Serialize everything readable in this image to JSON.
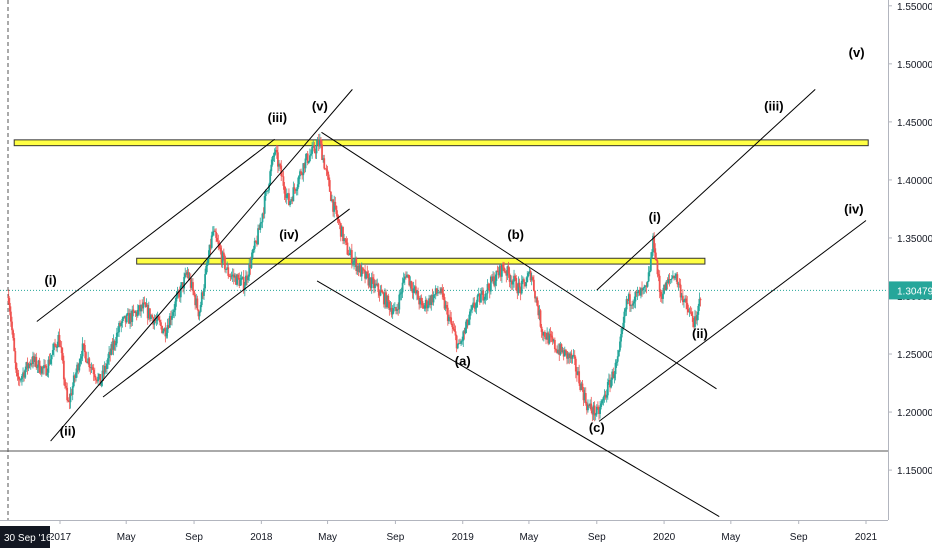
{
  "chart_data": {
    "type": "candlestick",
    "x_axis": {
      "cursor_label": "30 Sep '16",
      "ticks": [
        "2017",
        "May",
        "Sep",
        "2018",
        "May",
        "Sep",
        "2019",
        "May",
        "Sep",
        "2020",
        "May",
        "Sep",
        "2021"
      ]
    },
    "y_axis": {
      "ticks": [
        "1.15000",
        "1.20000",
        "1.25000",
        "1.30000",
        "1.35000",
        "1.40000",
        "1.45000",
        "1.50000",
        "1.55000"
      ],
      "tick_values": [
        1.15,
        1.2,
        1.25,
        1.3,
        1.35,
        1.4,
        1.45,
        1.5,
        1.55
      ],
      "range": [
        1.107,
        1.555
      ]
    },
    "last_price": {
      "label": "1.30479",
      "value": 1.3048,
      "color": "#26a69a"
    },
    "colors": {
      "up": "#26a69a",
      "down": "#ef5350",
      "resistance_fill": "#ffff44",
      "resistance_stroke": "#333333",
      "channel": "#000000"
    },
    "price_path": [
      [
        "2016-09-30",
        1.3
      ],
      [
        "2016-10-15",
        1.225
      ],
      [
        "2016-11-10",
        1.245
      ],
      [
        "2016-12-05",
        1.235
      ],
      [
        "2016-12-30",
        1.265
      ],
      [
        "2017-01-15",
        1.205
      ],
      [
        "2017-02-10",
        1.255
      ],
      [
        "2017-03-15",
        1.225
      ],
      [
        "2017-04-20",
        1.275
      ],
      [
        "2017-06-01",
        1.29
      ],
      [
        "2017-07-10",
        1.27
      ],
      [
        "2017-08-20",
        1.32
      ],
      [
        "2017-09-10",
        1.285
      ],
      [
        "2017-10-05",
        1.355
      ],
      [
        "2017-11-01",
        1.32
      ],
      [
        "2017-12-01",
        1.31
      ],
      [
        "2017-12-25",
        1.35
      ],
      [
        "2018-01-25",
        1.425
      ],
      [
        "2018-02-20",
        1.38
      ],
      [
        "2018-03-20",
        1.415
      ],
      [
        "2018-04-17",
        1.432
      ],
      [
        "2018-05-10",
        1.38
      ],
      [
        "2018-06-05",
        1.34
      ],
      [
        "2018-07-01",
        1.32
      ],
      [
        "2018-08-01",
        1.305
      ],
      [
        "2018-09-01",
        1.285
      ],
      [
        "2018-09-20",
        1.32
      ],
      [
        "2018-10-20",
        1.29
      ],
      [
        "2018-11-20",
        1.305
      ],
      [
        "2018-12-25",
        1.255
      ],
      [
        "2019-01-20",
        1.29
      ],
      [
        "2019-02-20",
        1.31
      ],
      [
        "2019-03-15",
        1.325
      ],
      [
        "2019-04-15",
        1.305
      ],
      [
        "2019-05-05",
        1.32
      ],
      [
        "2019-05-25",
        1.27
      ],
      [
        "2019-06-20",
        1.255
      ],
      [
        "2019-07-20",
        1.245
      ],
      [
        "2019-08-15",
        1.205
      ],
      [
        "2019-09-03",
        1.198
      ],
      [
        "2019-10-10",
        1.245
      ],
      [
        "2019-10-25",
        1.295
      ],
      [
        "2019-12-01",
        1.305
      ],
      [
        "2019-12-13",
        1.35
      ],
      [
        "2019-12-25",
        1.3
      ],
      [
        "2020-01-20",
        1.32
      ],
      [
        "2020-02-10",
        1.29
      ],
      [
        "2020-02-28",
        1.275
      ],
      [
        "2020-03-08",
        1.3048
      ]
    ],
    "resistance_zones": [
      {
        "start": "2016-10-10",
        "end": "2021-01-05",
        "low": 1.4295,
        "high": 1.4345
      },
      {
        "start": "2017-05-20",
        "end": "2020-03-15",
        "low": 1.3275,
        "high": 1.3325
      }
    ],
    "horizontal_lines": [
      {
        "value": 1.1665,
        "color": "#555555"
      }
    ],
    "trend_lines": [
      {
        "from": [
          "2016-12-15",
          1.175
        ],
        "to": [
          "2018-06-15",
          1.478
        ]
      },
      {
        "from": [
          "2016-11-20",
          1.278
        ],
        "to": [
          "2018-01-25",
          1.435
        ]
      },
      {
        "from": [
          "2017-03-20",
          1.213
        ],
        "to": [
          "2018-06-10",
          1.375
        ]
      },
      {
        "from": [
          "2018-04-20",
          1.441
        ],
        "to": [
          "2020-04-05",
          1.22
        ]
      },
      {
        "from": [
          "2018-04-12",
          1.313
        ],
        "to": [
          "2020-04-10",
          1.11
        ]
      },
      {
        "from": [
          "2019-09-01",
          1.305
        ],
        "to": [
          "2020-10-01",
          1.478
        ]
      },
      {
        "from": [
          "2019-09-05",
          1.192
        ],
        "to": [
          "2021-01-01",
          1.365
        ]
      }
    ],
    "dotted_price_line": {
      "value": 1.3048,
      "color": "#26a69a"
    },
    "wave_labels": [
      {
        "text": "(i)",
        "date": "2016-12-15",
        "value": 1.31
      },
      {
        "text": "(ii)",
        "date": "2017-01-15",
        "value": 1.18
      },
      {
        "text": "(iii)",
        "date": "2018-01-30",
        "value": 1.45
      },
      {
        "text": "(iv)",
        "date": "2018-02-20",
        "value": 1.349
      },
      {
        "text": "(v)",
        "date": "2018-04-17",
        "value": 1.46
      },
      {
        "text": "(a)",
        "date": "2019-01-01",
        "value": 1.24
      },
      {
        "text": "(b)",
        "date": "2019-04-07",
        "value": 1.349
      },
      {
        "text": "(c)",
        "date": "2019-09-01",
        "value": 1.183
      },
      {
        "text": "(i)",
        "date": "2019-12-15",
        "value": 1.364
      },
      {
        "text": "(ii)",
        "date": "2020-03-06",
        "value": 1.264
      },
      {
        "text": "(iii)",
        "date": "2020-07-18",
        "value": 1.46
      },
      {
        "text": "(iv)",
        "date": "2020-12-10",
        "value": 1.371
      },
      {
        "text": "(v)",
        "date": "2020-12-15",
        "value": 1.506
      }
    ],
    "grid": false,
    "legend": "none"
  }
}
